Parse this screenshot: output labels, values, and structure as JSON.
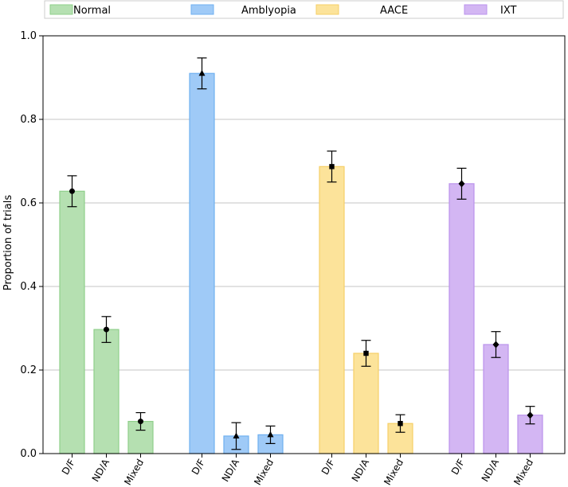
{
  "chart_data": {
    "type": "bar",
    "title": "",
    "xlabel": "",
    "ylabel": "Proportion of trials",
    "ylim": [
      0,
      1.0
    ],
    "yticks": [
      "0.0",
      "0.2",
      "0.4",
      "0.6",
      "0.8",
      "1.0"
    ],
    "grid": "horizontal",
    "legend_position": "top",
    "categories": [
      "D/F",
      "ND/A",
      "Mixed"
    ],
    "series": [
      {
        "name": "Normal",
        "color": "#b5e0b1",
        "edge": "#8fcf8a",
        "marker": "circle",
        "values": [
          0.628,
          0.297,
          0.077
        ],
        "errors": [
          0.037,
          0.031,
          0.021
        ]
      },
      {
        "name": "Amblyopia",
        "color": "#9fcaf7",
        "edge": "#6fb0f0",
        "marker": "triangle",
        "values": [
          0.91,
          0.042,
          0.045
        ],
        "errors": [
          0.037,
          0.032,
          0.021
        ]
      },
      {
        "name": "AACE",
        "color": "#fce39a",
        "edge": "#f6cf67",
        "marker": "square",
        "values": [
          0.687,
          0.24,
          0.072
        ],
        "errors": [
          0.037,
          0.031,
          0.021
        ]
      },
      {
        "name": "IXT",
        "color": "#d3b6f3",
        "edge": "#bb93ec",
        "marker": "diamond",
        "values": [
          0.646,
          0.261,
          0.092
        ],
        "errors": [
          0.037,
          0.031,
          0.021
        ]
      }
    ]
  }
}
